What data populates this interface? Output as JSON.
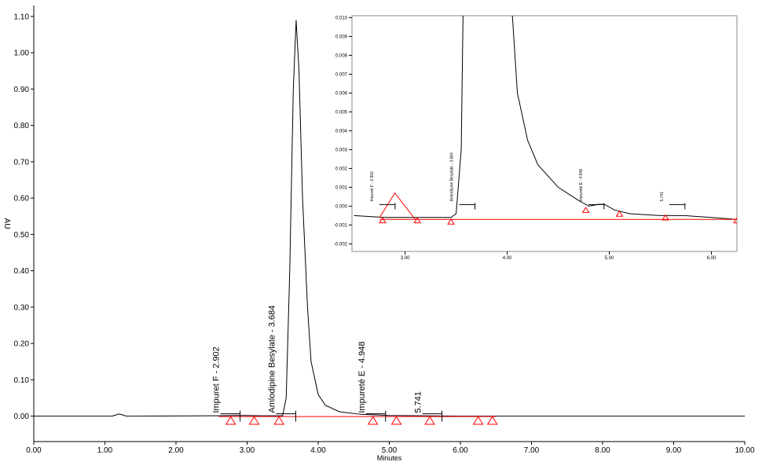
{
  "chart_data": [
    {
      "type": "line",
      "x_label": "Minutes",
      "y_label": "AU",
      "xlim": [
        0,
        10
      ],
      "ylim": [
        -0.07,
        1.13
      ],
      "xticks": [
        {
          "value": 0,
          "label": "0.00"
        },
        {
          "value": 1,
          "label": "1.00"
        },
        {
          "value": 2,
          "label": "2.00"
        },
        {
          "value": 3,
          "label": "3.00"
        },
        {
          "value": 4,
          "label": "4.00"
        },
        {
          "value": 5,
          "label": "5.00"
        },
        {
          "value": 6,
          "label": "6.00"
        },
        {
          "value": 7,
          "label": "7.00"
        },
        {
          "value": 8,
          "label": "8.00"
        },
        {
          "value": 9,
          "label": "9.00"
        },
        {
          "value": 10,
          "label": "10.00"
        }
      ],
      "yticks": [
        {
          "value": 0,
          "label": "0.00"
        },
        {
          "value": 0.1,
          "label": "0.10"
        },
        {
          "value": 0.2,
          "label": "0.20"
        },
        {
          "value": 0.3,
          "label": "0.30"
        },
        {
          "value": 0.4,
          "label": "0.40"
        },
        {
          "value": 0.5,
          "label": "0.50"
        },
        {
          "value": 0.6,
          "label": "0.60"
        },
        {
          "value": 0.7,
          "label": "0.70"
        },
        {
          "value": 0.8,
          "label": "0.80"
        },
        {
          "value": 0.9,
          "label": "0.90"
        },
        {
          "value": 1,
          "label": "1.00"
        },
        {
          "value": 1.1,
          "label": "1.10"
        }
      ],
      "series": [
        {
          "color": "#000000",
          "x": [
            0,
            1.1,
            1.17,
            1.2,
            1.24,
            1.3,
            1.5,
            2.6,
            2.85,
            2.9,
            2.95,
            3.2,
            3.5,
            3.55,
            3.6,
            3.65,
            3.69,
            3.73,
            3.78,
            3.85,
            3.9,
            4.0,
            4.1,
            4.3,
            4.6,
            5.0,
            6.0,
            10.0
          ],
          "values": [
            0,
            0,
            0.004,
            0.006,
            0.004,
            0,
            0,
            0.001,
            0.002,
            0.002,
            0.002,
            0.001,
            0.001,
            0.05,
            0.4,
            0.9,
            1.09,
            0.95,
            0.6,
            0.3,
            0.15,
            0.06,
            0.03,
            0.012,
            0.005,
            0.002,
            0,
            0
          ]
        },
        {
          "color": "#ff0000",
          "x": [
            2.6,
            6.5
          ],
          "values": [
            -0.001,
            -0.001
          ]
        }
      ],
      "markers": {
        "color": "#ff0000",
        "x": [
          2.77,
          3.1,
          3.45,
          4.77,
          5.1,
          5.57,
          6.25,
          6.45
        ],
        "values": [
          -0.012,
          -0.012,
          -0.012,
          -0.012,
          -0.012,
          -0.012,
          -0.012,
          -0.012
        ]
      },
      "annotations": [
        {
          "text": "Impuret F - 2.902",
          "x": 2.902
        },
        {
          "text": "Amlodipine Besylate - 3.684",
          "x": 3.684
        },
        {
          "text": "Impureté E - 4.948",
          "x": 4.948
        },
        {
          "text": "5.741",
          "x": 5.741
        }
      ]
    },
    {
      "type": "line",
      "xlim": [
        2.48,
        6.25
      ],
      "ylim": [
        -0.0024,
        0.0101
      ],
      "xticks": [
        {
          "value": 3,
          "label": "3.00"
        },
        {
          "value": 4,
          "label": "4.00"
        },
        {
          "value": 5,
          "label": "5.00"
        },
        {
          "value": 6,
          "label": "6.00"
        }
      ],
      "yticks": [
        {
          "value": 0.01,
          "label": "0.010"
        },
        0.009,
        0.008,
        0.007,
        0.006,
        0.005,
        0.004,
        0.003,
        0.002,
        0.001,
        {
          "value": 0,
          "label": "0.000"
        },
        -0.001,
        -0.002
      ],
      "series": [
        {
          "color": "#000000",
          "x": [
            2.5,
            2.8,
            3.0,
            3.3,
            3.45,
            3.5,
            3.55,
            3.57,
            4.04,
            4.1,
            4.2,
            4.3,
            4.5,
            4.7,
            4.8,
            4.9,
            4.95,
            5.05,
            5.2,
            5.5,
            5.74,
            6.0,
            6.25
          ],
          "values": [
            -0.0005,
            -0.0006,
            -0.0006,
            -0.0006,
            -0.0006,
            -0.0004,
            0.003,
            0.011,
            0.011,
            0.006,
            0.0035,
            0.0022,
            0.001,
            0.0003,
            0.0,
            0.0001,
            0.0001,
            -0.0002,
            -0.0004,
            -0.0005,
            -0.0005,
            -0.0006,
            -0.0007
          ]
        },
        {
          "color": "#ff0000",
          "x": [
            2.75,
            2.82,
            2.9,
            3.0,
            3.1
          ],
          "values": [
            -0.0006,
            0.0,
            0.0007,
            0.0,
            -0.0007
          ]
        },
        {
          "color": "#ff0000",
          "x": [
            2.75,
            6.25
          ],
          "values": [
            -0.0007,
            -0.0007
          ]
        }
      ],
      "markers": {
        "color": "#ff0000",
        "x": [
          2.78,
          3.12,
          3.45,
          4.77,
          5.1,
          5.55,
          6.25
        ],
        "values": [
          -0.00075,
          -0.00075,
          -0.00082,
          -0.0002,
          -0.0004,
          -0.0006,
          -0.00075
        ]
      },
      "annotations": [
        {
          "text": "Impuret F - 2.902",
          "x": 2.902
        },
        {
          "text": "Amlodipine Besylate - 3.684",
          "x": 3.684
        },
        {
          "text": "Impureté E - 4.948",
          "x": 4.948
        },
        {
          "text": "5.741",
          "x": 5.741
        }
      ]
    }
  ]
}
